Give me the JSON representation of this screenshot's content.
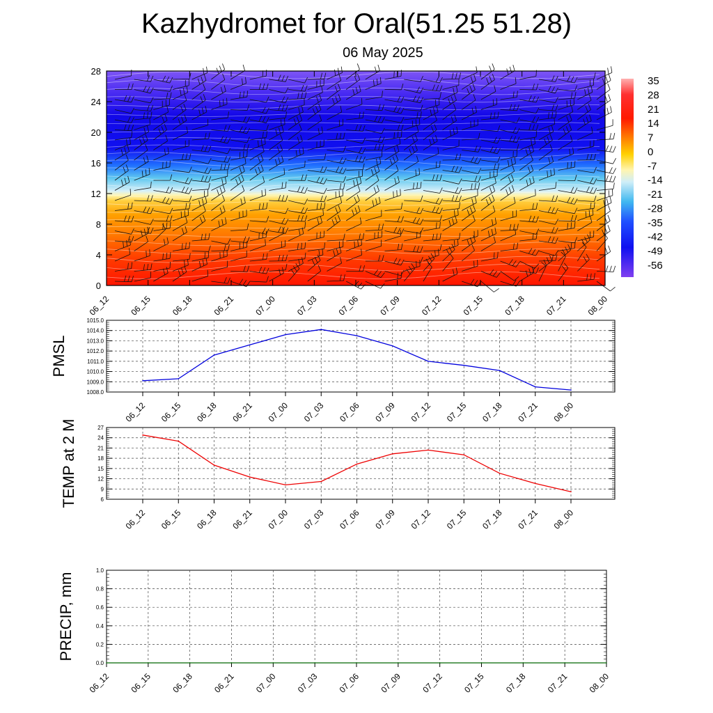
{
  "title": "Kazhydromet for Oral(51.25 51.28)",
  "subtitle": "06 May 2025",
  "chart_data": [
    {
      "type": "heatmap",
      "name": "cross-section",
      "x_ticks": [
        "06_12",
        "06_15",
        "06_18",
        "06_21",
        "07_00",
        "07_03",
        "07_06",
        "07_09",
        "07_12",
        "07_15",
        "07_18",
        "07_21",
        "08_00"
      ],
      "y_ticks": [
        0,
        4,
        8,
        12,
        16,
        20,
        24,
        28
      ],
      "ylim": [
        0,
        28
      ],
      "colorbar_labels": [
        "35",
        "28",
        "21",
        "14",
        "7",
        "0",
        "-7",
        "-14",
        "-21",
        "-28",
        "-35",
        "-42",
        "-49",
        "-56"
      ],
      "colors": {
        "warm": "#ff1a00",
        "mid": "#ffa800",
        "zero": "#fff5a0",
        "cool": "#56c8f0",
        "cold": "#1010f0",
        "coldest": "#7a2cf0"
      },
      "wind_barbs": "black"
    },
    {
      "type": "line",
      "ylabel": "PMSL",
      "categories": [
        "06_12",
        "06_15",
        "06_18",
        "06_21",
        "07_00",
        "07_03",
        "07_06",
        "07_09",
        "07_12",
        "07_15",
        "07_18",
        "07_21",
        "08_00"
      ],
      "values": [
        1009.1,
        1009.3,
        1011.6,
        1012.6,
        1013.6,
        1014.1,
        1013.5,
        1012.5,
        1011.0,
        1010.6,
        1010.1,
        1008.5,
        1008.2
      ],
      "ylim": [
        1008.0,
        1015.0
      ],
      "y_ticks": [
        "1008.0",
        "1009.0",
        "1010.0",
        "1011.0",
        "1012.0",
        "1013.0",
        "1014.0",
        "1015.0"
      ],
      "color": "#0000dd"
    },
    {
      "type": "line",
      "ylabel": "TEMP at 2 M",
      "categories": [
        "06_12",
        "06_15",
        "06_18",
        "06_21",
        "07_00",
        "07_03",
        "07_06",
        "07_09",
        "07_12",
        "07_15",
        "07_18",
        "07_21",
        "08_00"
      ],
      "values": [
        24.8,
        23.0,
        16.0,
        12.5,
        10.2,
        11.2,
        16.3,
        19.3,
        20.4,
        19.0,
        13.6,
        10.6,
        8.2
      ],
      "ylim": [
        6,
        27
      ],
      "y_ticks": [
        "6",
        "9",
        "12",
        "15",
        "18",
        "21",
        "24",
        "27"
      ],
      "color": "#ee0000"
    },
    {
      "type": "line",
      "ylabel": "PRECIP, mm",
      "categories": [
        "06_12",
        "06_15",
        "06_18",
        "06_21",
        "07_00",
        "07_03",
        "07_06",
        "07_09",
        "07_12",
        "07_15",
        "07_18",
        "07_21",
        "08_00"
      ],
      "values": [
        0,
        0,
        0,
        0,
        0,
        0,
        0,
        0,
        0,
        0,
        0,
        0,
        0
      ],
      "ylim": [
        0,
        1.0
      ],
      "y_ticks": [
        "0.0",
        "0.2",
        "0.4",
        "0.6",
        "0.8",
        "1.0"
      ],
      "color": "#006600"
    }
  ]
}
